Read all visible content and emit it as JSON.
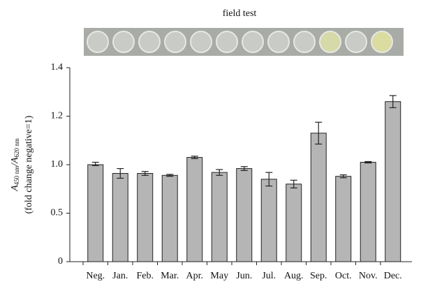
{
  "chart_data": {
    "type": "bar",
    "title": "field test",
    "y_label": [
      "A",
      "450 nm",
      "/A",
      "620 nm"
    ],
    "y_label_2": "(fold change negative=1)",
    "categories": [
      "Neg.",
      "Jan.",
      "Feb.",
      "Mar.",
      "Apr.",
      "May",
      "Jun.",
      "Jul.",
      "Aug.",
      "Sep.",
      "Oct.",
      "Nov.",
      "Dec."
    ],
    "values": [
      1.0,
      0.91,
      0.91,
      0.89,
      1.03,
      0.92,
      0.96,
      0.85,
      0.8,
      1.13,
      0.88,
      1.01,
      1.26
    ],
    "errors": [
      0.01,
      0.05,
      0.02,
      0.01,
      0.005,
      0.03,
      0.02,
      0.07,
      0.04,
      0.045,
      0.015,
      0.003,
      0.025
    ],
    "color": "#b5b5b5",
    "ylim": [
      0,
      1.4
    ],
    "yticks": [
      0,
      0.5,
      {
        "value": 1,
        "label": "1.0"
      },
      1.2,
      1.4
    ]
  }
}
